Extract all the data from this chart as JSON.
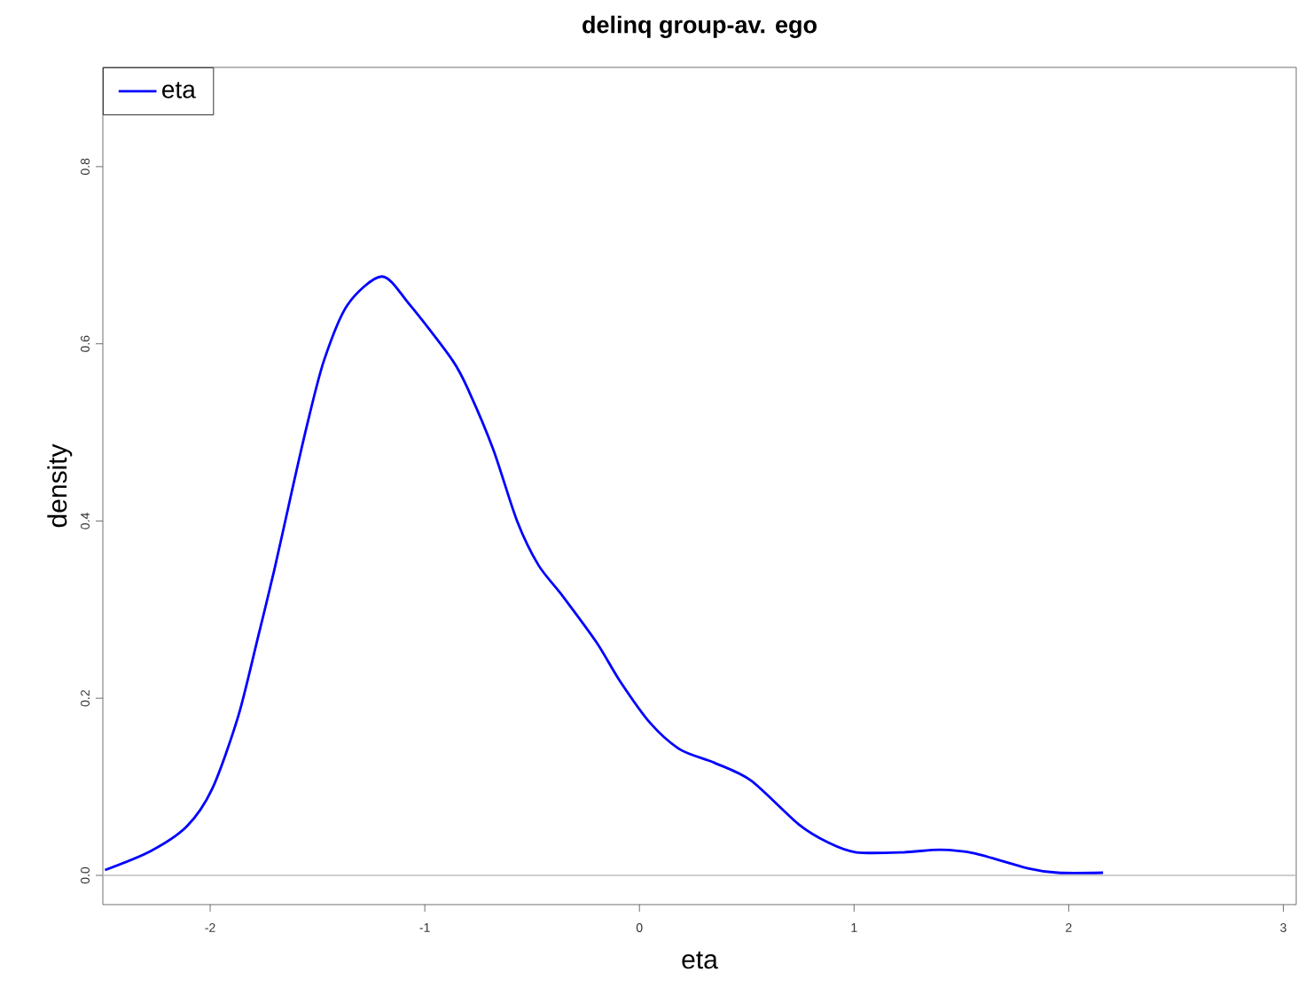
{
  "chart_data": {
    "type": "line",
    "title": "delinq group-av. ego",
    "xlabel": "eta",
    "ylabel": "density",
    "series": [
      {
        "name": "eta",
        "color": "#0000ff",
        "x": [
          -2.49,
          -2.28,
          -2.11,
          -1.99,
          -1.87,
          -1.78,
          -1.7,
          -1.62,
          -1.55,
          -1.47,
          -1.36,
          -1.2,
          -1.07,
          -0.87,
          -0.79,
          -0.68,
          -0.57,
          -0.47,
          -0.36,
          -0.2,
          -0.09,
          0.05,
          0.19,
          0.35,
          0.52,
          0.74,
          0.88,
          1.01,
          1.23,
          1.4,
          1.56,
          1.81,
          1.95,
          2.16
        ],
        "values": [
          0.006,
          0.027,
          0.055,
          0.098,
          0.179,
          0.266,
          0.346,
          0.433,
          0.507,
          0.581,
          0.644,
          0.676,
          0.644,
          0.581,
          0.544,
          0.48,
          0.4,
          0.35,
          0.316,
          0.263,
          0.219,
          0.172,
          0.142,
          0.127,
          0.107,
          0.058,
          0.037,
          0.026,
          0.026,
          0.029,
          0.025,
          0.008,
          0.003,
          0.003
        ]
      }
    ],
    "xlim": [
      -2.5,
      3.06
    ],
    "ylim": [
      -0.033,
      0.912
    ],
    "xticks": [
      -2,
      -1,
      0,
      1,
      2,
      3
    ],
    "yticks": [
      {
        "value": 0,
        "label": "0.0"
      },
      0.2,
      0.4,
      0.6,
      0.8
    ],
    "ref_lines": [
      {
        "axis": "y",
        "value": 0,
        "color": "#bebebe"
      }
    ],
    "legend": "top left",
    "grid": false,
    "marker": "none",
    "line_style": "solid"
  }
}
